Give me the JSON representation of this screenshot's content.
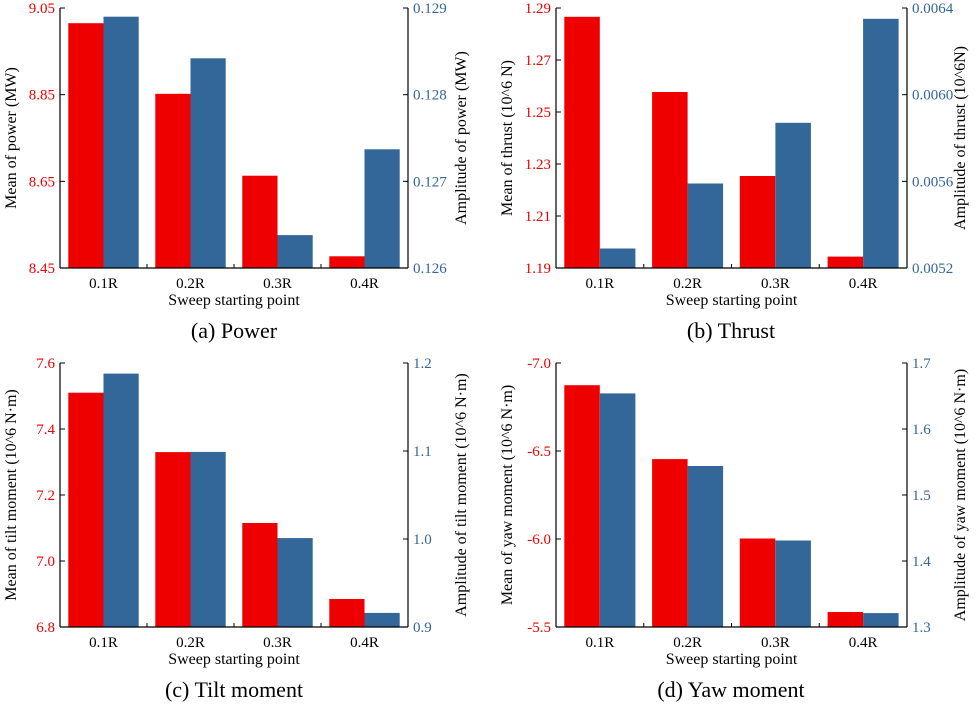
{
  "colors": {
    "mean": "#ee0000",
    "amplitude": "#336699",
    "axis": "#000000"
  },
  "chart_data": [
    {
      "type": "bar",
      "panel": "a",
      "caption": "(a)  Power",
      "categories": [
        "0.1R",
        "0.2R",
        "0.3R",
        "0.4R"
      ],
      "xlabel": "Sweep starting point",
      "ylabel_left": "Mean of power (MW)",
      "ylabel_right": "Amplitude of power (MW)",
      "ylim_left": [
        8.45,
        9.05
      ],
      "ylim_right": [
        0.126,
        0.129
      ],
      "yticks_left": [
        "8.45",
        "8.65",
        "8.85",
        "9.05"
      ],
      "yticks_right": [
        "0.126",
        "0.127",
        "0.128",
        "0.129"
      ],
      "series": [
        {
          "name": "Mean",
          "axis": "left",
          "values": [
            9.015,
            8.852,
            8.663,
            8.477
          ]
        },
        {
          "name": "Amplitude",
          "axis": "right",
          "values": [
            0.1289,
            0.12842,
            0.12638,
            0.12737
          ]
        }
      ]
    },
    {
      "type": "bar",
      "panel": "b",
      "caption": "(b)  Thrust",
      "categories": [
        "0.1R",
        "0.2R",
        "0.3R",
        "0.4R"
      ],
      "xlabel": "Sweep starting point",
      "ylabel_left": "Mean of thrust (10^6 N)",
      "ylabel_right": "Amplitude of thrust (10^6N)",
      "ylim_left": [
        1.19,
        1.29
      ],
      "ylim_right": [
        0.0052,
        0.0064
      ],
      "yticks_left": [
        "1.19",
        "1.21",
        "1.23",
        "1.25",
        "1.27",
        "1.29"
      ],
      "yticks_right": [
        "0.0052",
        "0.0056",
        "0.0060",
        "0.0064"
      ],
      "series": [
        {
          "name": "Mean",
          "axis": "left",
          "values": [
            1.2866,
            1.2577,
            1.2254,
            1.1944
          ]
        },
        {
          "name": "Amplitude",
          "axis": "right",
          "values": [
            0.00529,
            0.00559,
            0.00587,
            0.00635
          ]
        }
      ]
    },
    {
      "type": "bar",
      "panel": "c",
      "caption": "(c)  Tilt moment",
      "categories": [
        "0.1R",
        "0.2R",
        "0.3R",
        "0.4R"
      ],
      "xlabel": "Sweep starting point",
      "ylabel_left": "Mean of tilt moment (10^6 N·m)",
      "ylabel_right": "Amplitude of tilt moment (10^6 N·m)",
      "ylim_left": [
        6.8,
        7.6
      ],
      "ylim_right": [
        0.9,
        1.2
      ],
      "yticks_left": [
        "6.8",
        "7.0",
        "7.2",
        "7.4",
        "7.6"
      ],
      "yticks_right": [
        "0.9",
        "1.0",
        "1.1",
        "1.2"
      ],
      "series": [
        {
          "name": "Mean",
          "axis": "left",
          "values": [
            7.51,
            7.33,
            7.115,
            6.885
          ]
        },
        {
          "name": "Amplitude",
          "axis": "right",
          "values": [
            1.188,
            1.099,
            1.001,
            0.916
          ]
        }
      ]
    },
    {
      "type": "bar",
      "panel": "d",
      "caption": "(d)  Yaw moment",
      "categories": [
        "0.1R",
        "0.2R",
        "0.3R",
        "0.4R"
      ],
      "xlabel": "Sweep starting point",
      "ylabel_left": "Mean of yaw moment (10^6 N·m)",
      "ylabel_right": "Amplitude of yaw moment (10^6 N·m)",
      "ylim_left": [
        -5.5,
        -7.0
      ],
      "ylim_right": [
        1.3,
        1.7
      ],
      "yticks_left": [
        "-5.5",
        "-6.0",
        "-6.5",
        "-7.0"
      ],
      "yticks_right": [
        "1.3",
        "1.4",
        "1.5",
        "1.6",
        "1.7"
      ],
      "series": [
        {
          "name": "Mean",
          "axis": "left",
          "values": [
            -6.874,
            -6.454,
            -6.003,
            -5.585
          ]
        },
        {
          "name": "Amplitude",
          "axis": "right",
          "values": [
            1.654,
            1.544,
            1.431,
            1.321
          ]
        }
      ]
    }
  ]
}
